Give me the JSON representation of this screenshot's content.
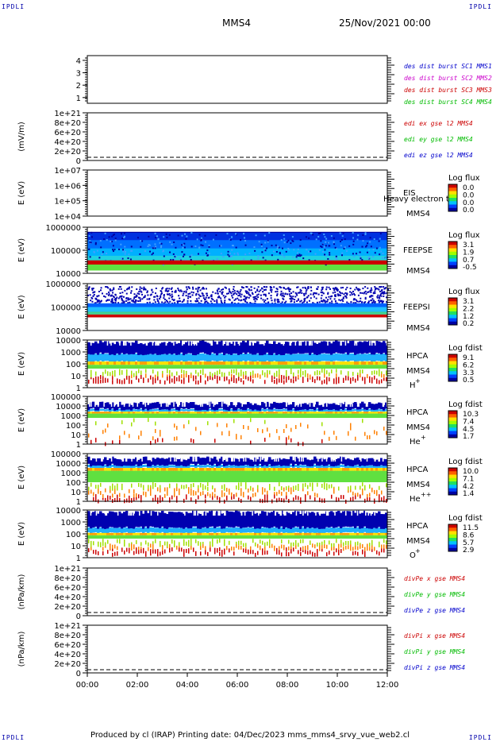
{
  "header": {
    "corner_tl": "IPDLI",
    "corner_tr": "IPDLI",
    "corner_bl": "IPDLI",
    "corner_br": "IPDLI",
    "spacecraft": "MMS4",
    "datetime": "25/Nov/2021 00:00"
  },
  "footer": {
    "text": "Produced by cl (IRAP)    Printing date: 04/Dec/2023    mms_mms4_srvy_vue_web2.cl"
  },
  "colors": {
    "blue": "#0000cc",
    "magenta": "#cc00cc",
    "red": "#cc0000",
    "green": "#00bb00",
    "colorbar": [
      "#0000a0",
      "#0040ff",
      "#00c0ff",
      "#20e060",
      "#a0ff00",
      "#ffe000",
      "#ff6000",
      "#cc0000"
    ]
  },
  "chart_data": [
    {
      "type": "line",
      "id": "burst",
      "yticks": [
        "1",
        "2",
        "3",
        "4"
      ],
      "ylabel": "",
      "legend": [
        {
          "text": "des dist burst SC1 MMS1",
          "color": "#0000cc"
        },
        {
          "text": "des dist burst SC2 MMS2",
          "color": "#cc00cc"
        },
        {
          "text": "des dist burst SC3 MMS3",
          "color": "#cc0000"
        },
        {
          "text": "des dist burst SC4 MMS4",
          "color": "#00bb00"
        }
      ]
    },
    {
      "type": "line",
      "id": "edi",
      "ylabel": "(mV/m)",
      "yticks": [
        "0",
        "2e+20",
        "4e+20",
        "6e+20",
        "8e+20",
        "1e+21"
      ],
      "legend": [
        {
          "text": "edi ex gse l2 MMS4",
          "color": "#cc0000"
        },
        {
          "text": "edi ey gse l2 MMS4",
          "color": "#00bb00"
        },
        {
          "text": "edi ez gse l2 MMS4",
          "color": "#0000cc"
        }
      ]
    },
    {
      "type": "heatmap",
      "id": "eis",
      "ylabel": "E (eV)",
      "yticks": [
        "1e+04",
        "1e+05",
        "1e+06",
        "1e+07"
      ],
      "instrument": [
        "EIS",
        "MMS4"
      ],
      "overlay_text": "Heavy electron tof",
      "cb_title": "Log flux",
      "cb_ticks": [
        "0.0",
        "0.0",
        "0.0",
        "0.0"
      ],
      "has_data": false
    },
    {
      "type": "heatmap",
      "id": "feepse",
      "ylabel": "E (eV)",
      "yticks": [
        "10000",
        "100000",
        "1000000"
      ],
      "instrument": [
        "FEEPSE",
        "MMS4"
      ],
      "cb_title": "Log flux",
      "cb_ticks": [
        "3.1",
        "1.9",
        "0.7",
        "-0.5"
      ],
      "has_data": true
    },
    {
      "type": "heatmap",
      "id": "feepsi",
      "ylabel": "E (eV)",
      "yticks": [
        "10000",
        "100000",
        "1000000"
      ],
      "instrument": [
        "FEEPSI",
        "MMS4"
      ],
      "cb_title": "Log flux",
      "cb_ticks": [
        "3.1",
        "2.2",
        "1.2",
        "0.2"
      ],
      "has_data": true
    },
    {
      "type": "heatmap",
      "id": "hpca_h",
      "ylabel": "E (eV)",
      "yticks": [
        "1",
        "10",
        "100",
        "1000",
        "10000"
      ],
      "instrument": [
        "HPCA",
        "MMS4"
      ],
      "species": "H",
      "species_sup": "+",
      "cb_title": "Log fdist",
      "cb_ticks": [
        "9.1",
        "6.2",
        "3.3",
        "0.5"
      ],
      "has_data": true
    },
    {
      "type": "heatmap",
      "id": "hpca_he",
      "ylabel": "E (eV)",
      "yticks": [
        "1",
        "10",
        "100",
        "1000",
        "10000",
        "100000"
      ],
      "instrument": [
        "HPCA",
        "MMS4"
      ],
      "species": "He",
      "species_sup": "+",
      "cb_title": "Log fdist",
      "cb_ticks": [
        "10.3",
        "7.4",
        "4.5",
        "1.7"
      ],
      "has_data": true
    },
    {
      "type": "heatmap",
      "id": "hpca_hepp",
      "ylabel": "E (eV)",
      "yticks": [
        "1",
        "10",
        "100",
        "1000",
        "10000",
        "100000"
      ],
      "instrument": [
        "HPCA",
        "MMS4"
      ],
      "species": "He",
      "species_sup": "++",
      "cb_title": "Log fdist",
      "cb_ticks": [
        "10.0",
        "7.1",
        "4.2",
        "1.4"
      ],
      "has_data": true
    },
    {
      "type": "heatmap",
      "id": "hpca_o",
      "ylabel": "E (eV)",
      "yticks": [
        "1",
        "10",
        "100",
        "1000",
        "10000"
      ],
      "instrument": [
        "HPCA",
        "MMS4"
      ],
      "species": "O",
      "species_sup": "+",
      "cb_title": "Log fdist",
      "cb_ticks": [
        "11.5",
        "8.6",
        "5.7",
        "2.9"
      ],
      "has_data": true
    },
    {
      "type": "line",
      "id": "divpe",
      "ylabel": "(nPa/km)",
      "yticks": [
        "0",
        "2e+20",
        "4e+20",
        "6e+20",
        "8e+20",
        "1e+21"
      ],
      "legend": [
        {
          "text": "divPe x gse MMS4",
          "color": "#cc0000"
        },
        {
          "text": "divPe y gse MMS4",
          "color": "#00bb00"
        },
        {
          "text": "divPe z gse MMS4",
          "color": "#0000cc"
        }
      ]
    },
    {
      "type": "line",
      "id": "divpi",
      "ylabel": "(nPa/km)",
      "yticks": [
        "0",
        "2e+20",
        "4e+20",
        "6e+20",
        "8e+20",
        "1e+21"
      ],
      "legend": [
        {
          "text": "divPi x gse MMS4",
          "color": "#cc0000"
        },
        {
          "text": "divPi y gse MMS4",
          "color": "#00bb00"
        },
        {
          "text": "divPi z gse MMS4",
          "color": "#0000cc"
        }
      ]
    }
  ],
  "xaxis": {
    "ticks": [
      "00:00",
      "02:00",
      "04:00",
      "06:00",
      "08:00",
      "10:00",
      "12:00"
    ]
  }
}
